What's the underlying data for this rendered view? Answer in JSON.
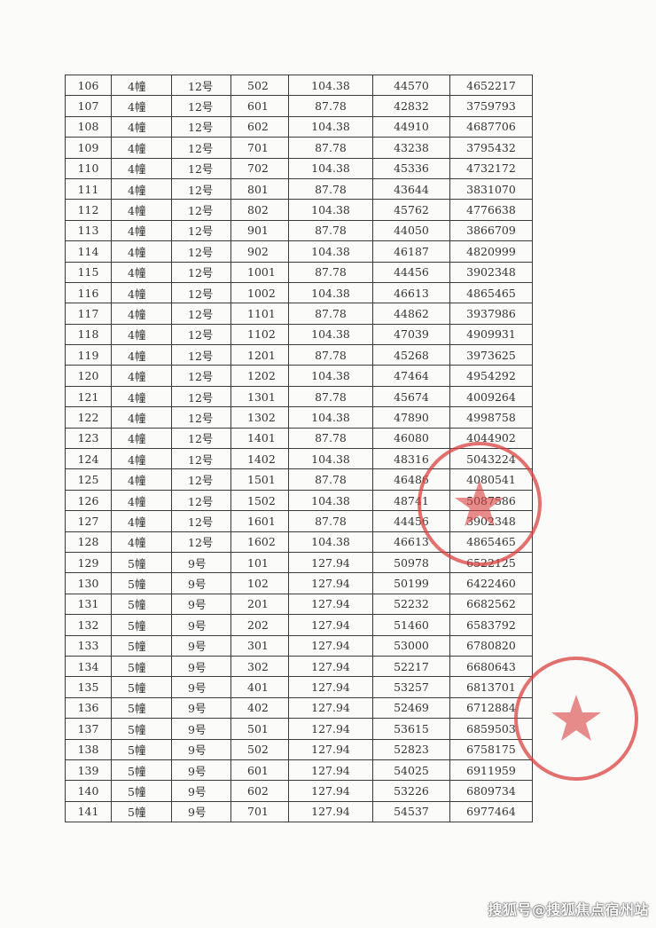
{
  "table": {
    "rows": [
      [
        "106",
        "4幢",
        "12号",
        "502",
        "104.38",
        "44570",
        "4652217"
      ],
      [
        "107",
        "4幢",
        "12号",
        "601",
        "87.78",
        "42832",
        "3759793"
      ],
      [
        "108",
        "4幢",
        "12号",
        "602",
        "104.38",
        "44910",
        "4687706"
      ],
      [
        "109",
        "4幢",
        "12号",
        "701",
        "87.78",
        "43238",
        "3795432"
      ],
      [
        "110",
        "4幢",
        "12号",
        "702",
        "104.38",
        "45336",
        "4732172"
      ],
      [
        "111",
        "4幢",
        "12号",
        "801",
        "87.78",
        "43644",
        "3831070"
      ],
      [
        "112",
        "4幢",
        "12号",
        "802",
        "104.38",
        "45762",
        "4776638"
      ],
      [
        "113",
        "4幢",
        "12号",
        "901",
        "87.78",
        "44050",
        "3866709"
      ],
      [
        "114",
        "4幢",
        "12号",
        "902",
        "104.38",
        "46187",
        "4820999"
      ],
      [
        "115",
        "4幢",
        "12号",
        "1001",
        "87.78",
        "44456",
        "3902348"
      ],
      [
        "116",
        "4幢",
        "12号",
        "1002",
        "104.38",
        "46613",
        "4865465"
      ],
      [
        "117",
        "4幢",
        "12号",
        "1101",
        "87.78",
        "44862",
        "3937986"
      ],
      [
        "118",
        "4幢",
        "12号",
        "1102",
        "104.38",
        "47039",
        "4909931"
      ],
      [
        "119",
        "4幢",
        "12号",
        "1201",
        "87.78",
        "45268",
        "3973625"
      ],
      [
        "120",
        "4幢",
        "12号",
        "1202",
        "104.38",
        "47464",
        "4954292"
      ],
      [
        "121",
        "4幢",
        "12号",
        "1301",
        "87.78",
        "45674",
        "4009264"
      ],
      [
        "122",
        "4幢",
        "12号",
        "1302",
        "104.38",
        "47890",
        "4998758"
      ],
      [
        "123",
        "4幢",
        "12号",
        "1401",
        "87.78",
        "46080",
        "4044902"
      ],
      [
        "124",
        "4幢",
        "12号",
        "1402",
        "104.38",
        "48316",
        "5043224"
      ],
      [
        "125",
        "4幢",
        "12号",
        "1501",
        "87.78",
        "46486",
        "4080541"
      ],
      [
        "126",
        "4幢",
        "12号",
        "1502",
        "104.38",
        "48741",
        "5087586"
      ],
      [
        "127",
        "4幢",
        "12号",
        "1601",
        "87.78",
        "44456",
        "3902348"
      ],
      [
        "128",
        "4幢",
        "12号",
        "1602",
        "104.38",
        "46613",
        "4865465"
      ],
      [
        "129",
        "5幢",
        "9号",
        "101",
        "127.94",
        "50978",
        "6522125"
      ],
      [
        "130",
        "5幢",
        "9号",
        "102",
        "127.94",
        "50199",
        "6422460"
      ],
      [
        "131",
        "5幢",
        "9号",
        "201",
        "127.94",
        "52232",
        "6682562"
      ],
      [
        "132",
        "5幢",
        "9号",
        "202",
        "127.94",
        "51460",
        "6583792"
      ],
      [
        "133",
        "5幢",
        "9号",
        "301",
        "127.94",
        "53000",
        "6780820"
      ],
      [
        "134",
        "5幢",
        "9号",
        "302",
        "127.94",
        "52217",
        "6680643"
      ],
      [
        "135",
        "5幢",
        "9号",
        "401",
        "127.94",
        "53257",
        "6813701"
      ],
      [
        "136",
        "5幢",
        "9号",
        "402",
        "127.94",
        "52469",
        "6712884"
      ],
      [
        "137",
        "5幢",
        "9号",
        "501",
        "127.94",
        "53615",
        "6859503"
      ],
      [
        "138",
        "5幢",
        "9号",
        "502",
        "127.94",
        "52823",
        "6758175"
      ],
      [
        "139",
        "5幢",
        "9号",
        "601",
        "127.94",
        "54025",
        "6911959"
      ],
      [
        "140",
        "5幢",
        "9号",
        "602",
        "127.94",
        "53226",
        "6809734"
      ],
      [
        "141",
        "5幢",
        "9号",
        "701",
        "127.94",
        "54537",
        "6977464"
      ]
    ]
  },
  "watermark": "搜狐号@搜狐焦点宿州站",
  "colors": {
    "stamp": "#d9413f"
  }
}
